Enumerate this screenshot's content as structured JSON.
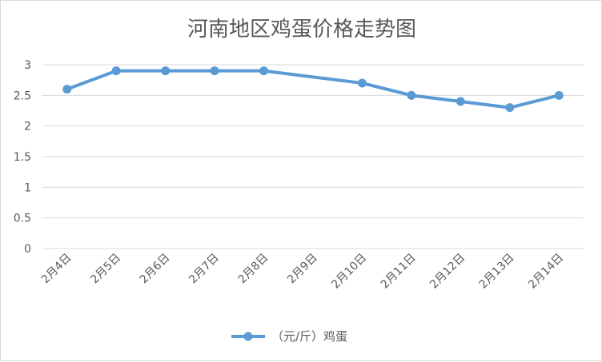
{
  "chart_data": {
    "type": "line",
    "title": "河南地区鸡蛋价格走势图",
    "categories": [
      "2月4日",
      "2月5日",
      "2月6日",
      "2月7日",
      "2月8日",
      "2月9日",
      "2月10日",
      "2月11日",
      "2月12日",
      "2月13日",
      "2月14日"
    ],
    "series": [
      {
        "name": "（元/斤）鸡蛋",
        "values": [
          2.6,
          2.9,
          2.9,
          2.9,
          2.9,
          null,
          2.7,
          2.5,
          2.4,
          2.3,
          2.5
        ],
        "color": "#5b9bd5"
      }
    ],
    "ylim": [
      0,
      3
    ],
    "yticks": [
      "0",
      "0.5",
      "1",
      "1.5",
      "2",
      "2.5",
      "3"
    ],
    "grid": true,
    "legend": "bottom",
    "xlabel": "",
    "ylabel": ""
  }
}
